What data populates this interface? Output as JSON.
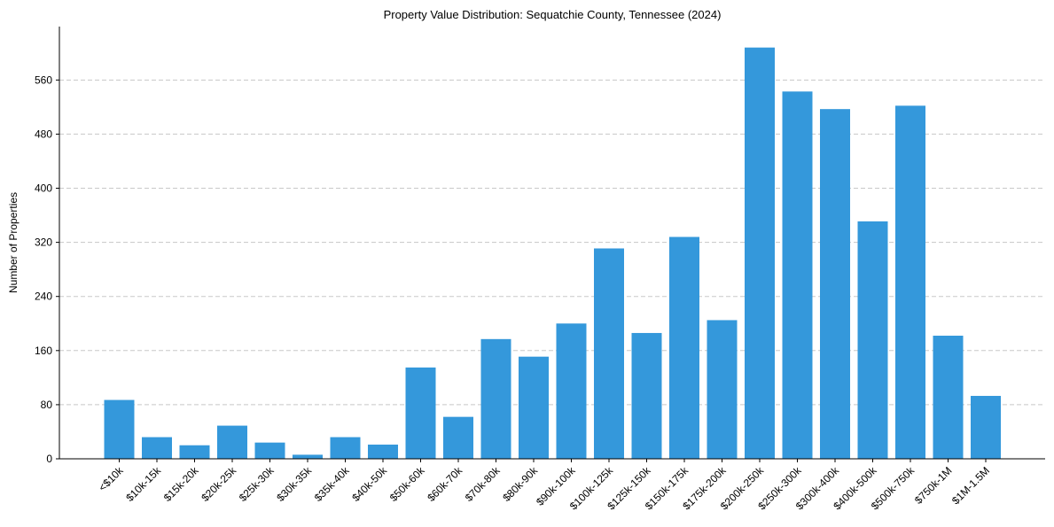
{
  "chart_data": {
    "type": "bar",
    "title": "Property Value Distribution: Sequatchie County, Tennessee (2024)",
    "xlabel": "",
    "ylabel": "Number of Properties",
    "categories": [
      "<$10k",
      "$10k-15k",
      "$15k-20k",
      "$20k-25k",
      "$25k-30k",
      "$30k-35k",
      "$35k-40k",
      "$40k-50k",
      "$50k-60k",
      "$60k-70k",
      "$70k-80k",
      "$80k-90k",
      "$90k-100k",
      "$100k-125k",
      "$125k-150k",
      "$150k-175k",
      "$175k-200k",
      "$200k-250k",
      "$250k-300k",
      "$300k-400k",
      "$400k-500k",
      "$500k-750k",
      "$750k-1M",
      "$1M-1.5M"
    ],
    "values": [
      87,
      32,
      20,
      49,
      24,
      6,
      32,
      21,
      135,
      62,
      177,
      151,
      200,
      311,
      186,
      328,
      205,
      608,
      543,
      517,
      351,
      522,
      182,
      93
    ],
    "yticks": [
      0,
      80,
      160,
      240,
      320,
      400,
      480,
      560
    ],
    "ylim": [
      0,
      639
    ],
    "grid": "y-dashed",
    "bar_color": "#3498db"
  }
}
